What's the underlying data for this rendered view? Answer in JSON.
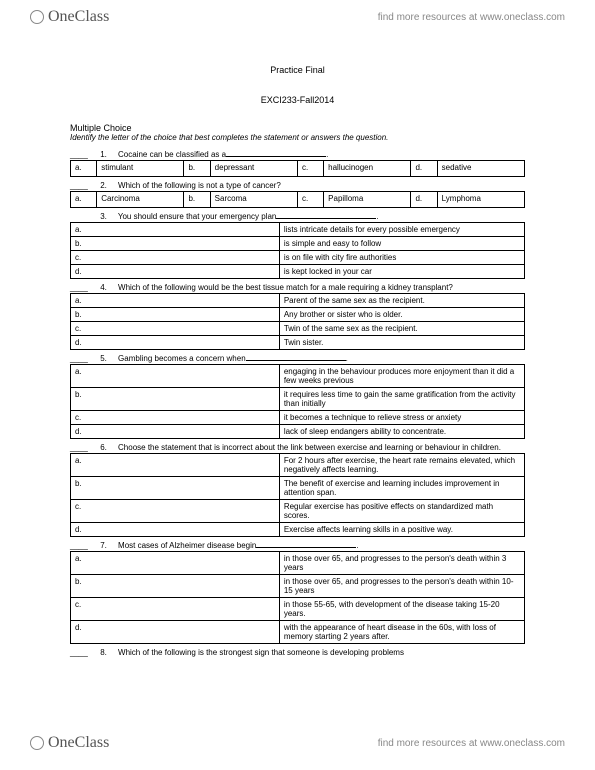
{
  "brand": "OneClass",
  "resource_text": "find more resources at www.oneclass.com",
  "title_line1": "Practice Final",
  "title_line2": "EXCI233-Fall2014",
  "section": "Multiple Choice",
  "instruction": "Identify the letter of the choice that best completes the statement or answers the question.",
  "q1": {
    "num": "1.",
    "text": "Cocaine can be classified as a",
    "a": "stimulant",
    "b": "depressant",
    "c": "hallucinogen",
    "d": "sedative"
  },
  "q2": {
    "num": "2.",
    "text": "Which of the following is not a type of cancer?",
    "a": "Carcinoma",
    "b": "Sarcoma",
    "c": "Papilloma",
    "d": "Lymphoma"
  },
  "q3": {
    "num": "3.",
    "text": "You should ensure that your emergency plan",
    "a": "lists intricate details for every possible emergency",
    "b": "is simple and easy to follow",
    "c": "is on file with city fire authorities",
    "d": "is kept locked in your car"
  },
  "q4": {
    "num": "4.",
    "text": "Which of the following would be the best tissue match for a male requiring a kidney transplant?",
    "a": "Parent of the same sex as the recipient.",
    "b": "Any brother or sister who is older.",
    "c": "Twin of the same sex as the recipient.",
    "d": "Twin sister."
  },
  "q5": {
    "num": "5.",
    "text": "Gambling becomes a concern when",
    "a": "engaging in the behaviour produces more enjoyment than it did a few weeks previous",
    "b": "it requires less time to gain the same gratification from the activity than initially",
    "c": "it becomes a technique to relieve stress or anxiety",
    "d": "lack of sleep endangers ability to concentrate."
  },
  "q6": {
    "num": "6.",
    "text": "Choose the statement that is incorrect about the link between exercise and learning or behaviour in children.",
    "a": "For 2 hours after exercise, the heart rate remains elevated, which negatively affects learning.",
    "b": "The benefit of exercise and learning includes improvement in attention span.",
    "c": "Regular exercise has positive effects on standardized math scores.",
    "d": "Exercise affects learning skills in a positive way."
  },
  "q7": {
    "num": "7.",
    "text": "Most cases of Alzheimer disease begin",
    "a": "in those over 65, and progresses to the person's death within 3 years",
    "b": "in those over 65, and progresses to the person's death within 10-15 years",
    "c": "in those 55-65, with development of the disease taking 15-20 years.",
    "d": "with the appearance of heart disease in the 60s, with loss of memory starting 2 years after."
  },
  "q8": {
    "num": "8.",
    "text": "Which of the following is the strongest sign that someone is developing problems"
  },
  "labels": {
    "a": "a.",
    "b": "b.",
    "c": "c.",
    "d": "d."
  }
}
